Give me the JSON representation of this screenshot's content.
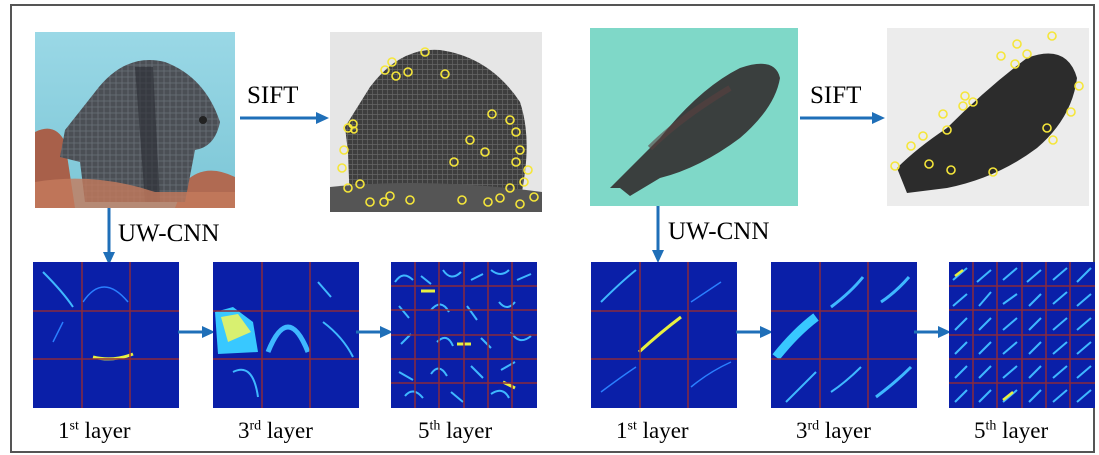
{
  "panels": [
    {
      "id": "left",
      "methods": {
        "sift": "SIFT",
        "cnn": "UW-CNN"
      },
      "layers": [
        {
          "num": "1",
          "sup": "st",
          "word": "layer"
        },
        {
          "num": "3",
          "sup": "rd",
          "word": "layer"
        },
        {
          "num": "5",
          "sup": "th",
          "word": "layer"
        }
      ]
    },
    {
      "id": "right",
      "methods": {
        "sift": "SIFT",
        "cnn": "UW-CNN"
      },
      "layers": [
        {
          "num": "1",
          "sup": "st",
          "word": "layer"
        },
        {
          "num": "3",
          "sup": "rd",
          "word": "layer"
        },
        {
          "num": "5",
          "sup": "th",
          "word": "layer"
        }
      ]
    }
  ],
  "colors": {
    "arrow": "#1f6fb8",
    "keypoint": "#f5e63a",
    "feature_bg": "#0a1fa8",
    "grid_line": "#8a2a3a",
    "water_left": "#8fd3e0",
    "water_right": "#7fd8c8"
  }
}
